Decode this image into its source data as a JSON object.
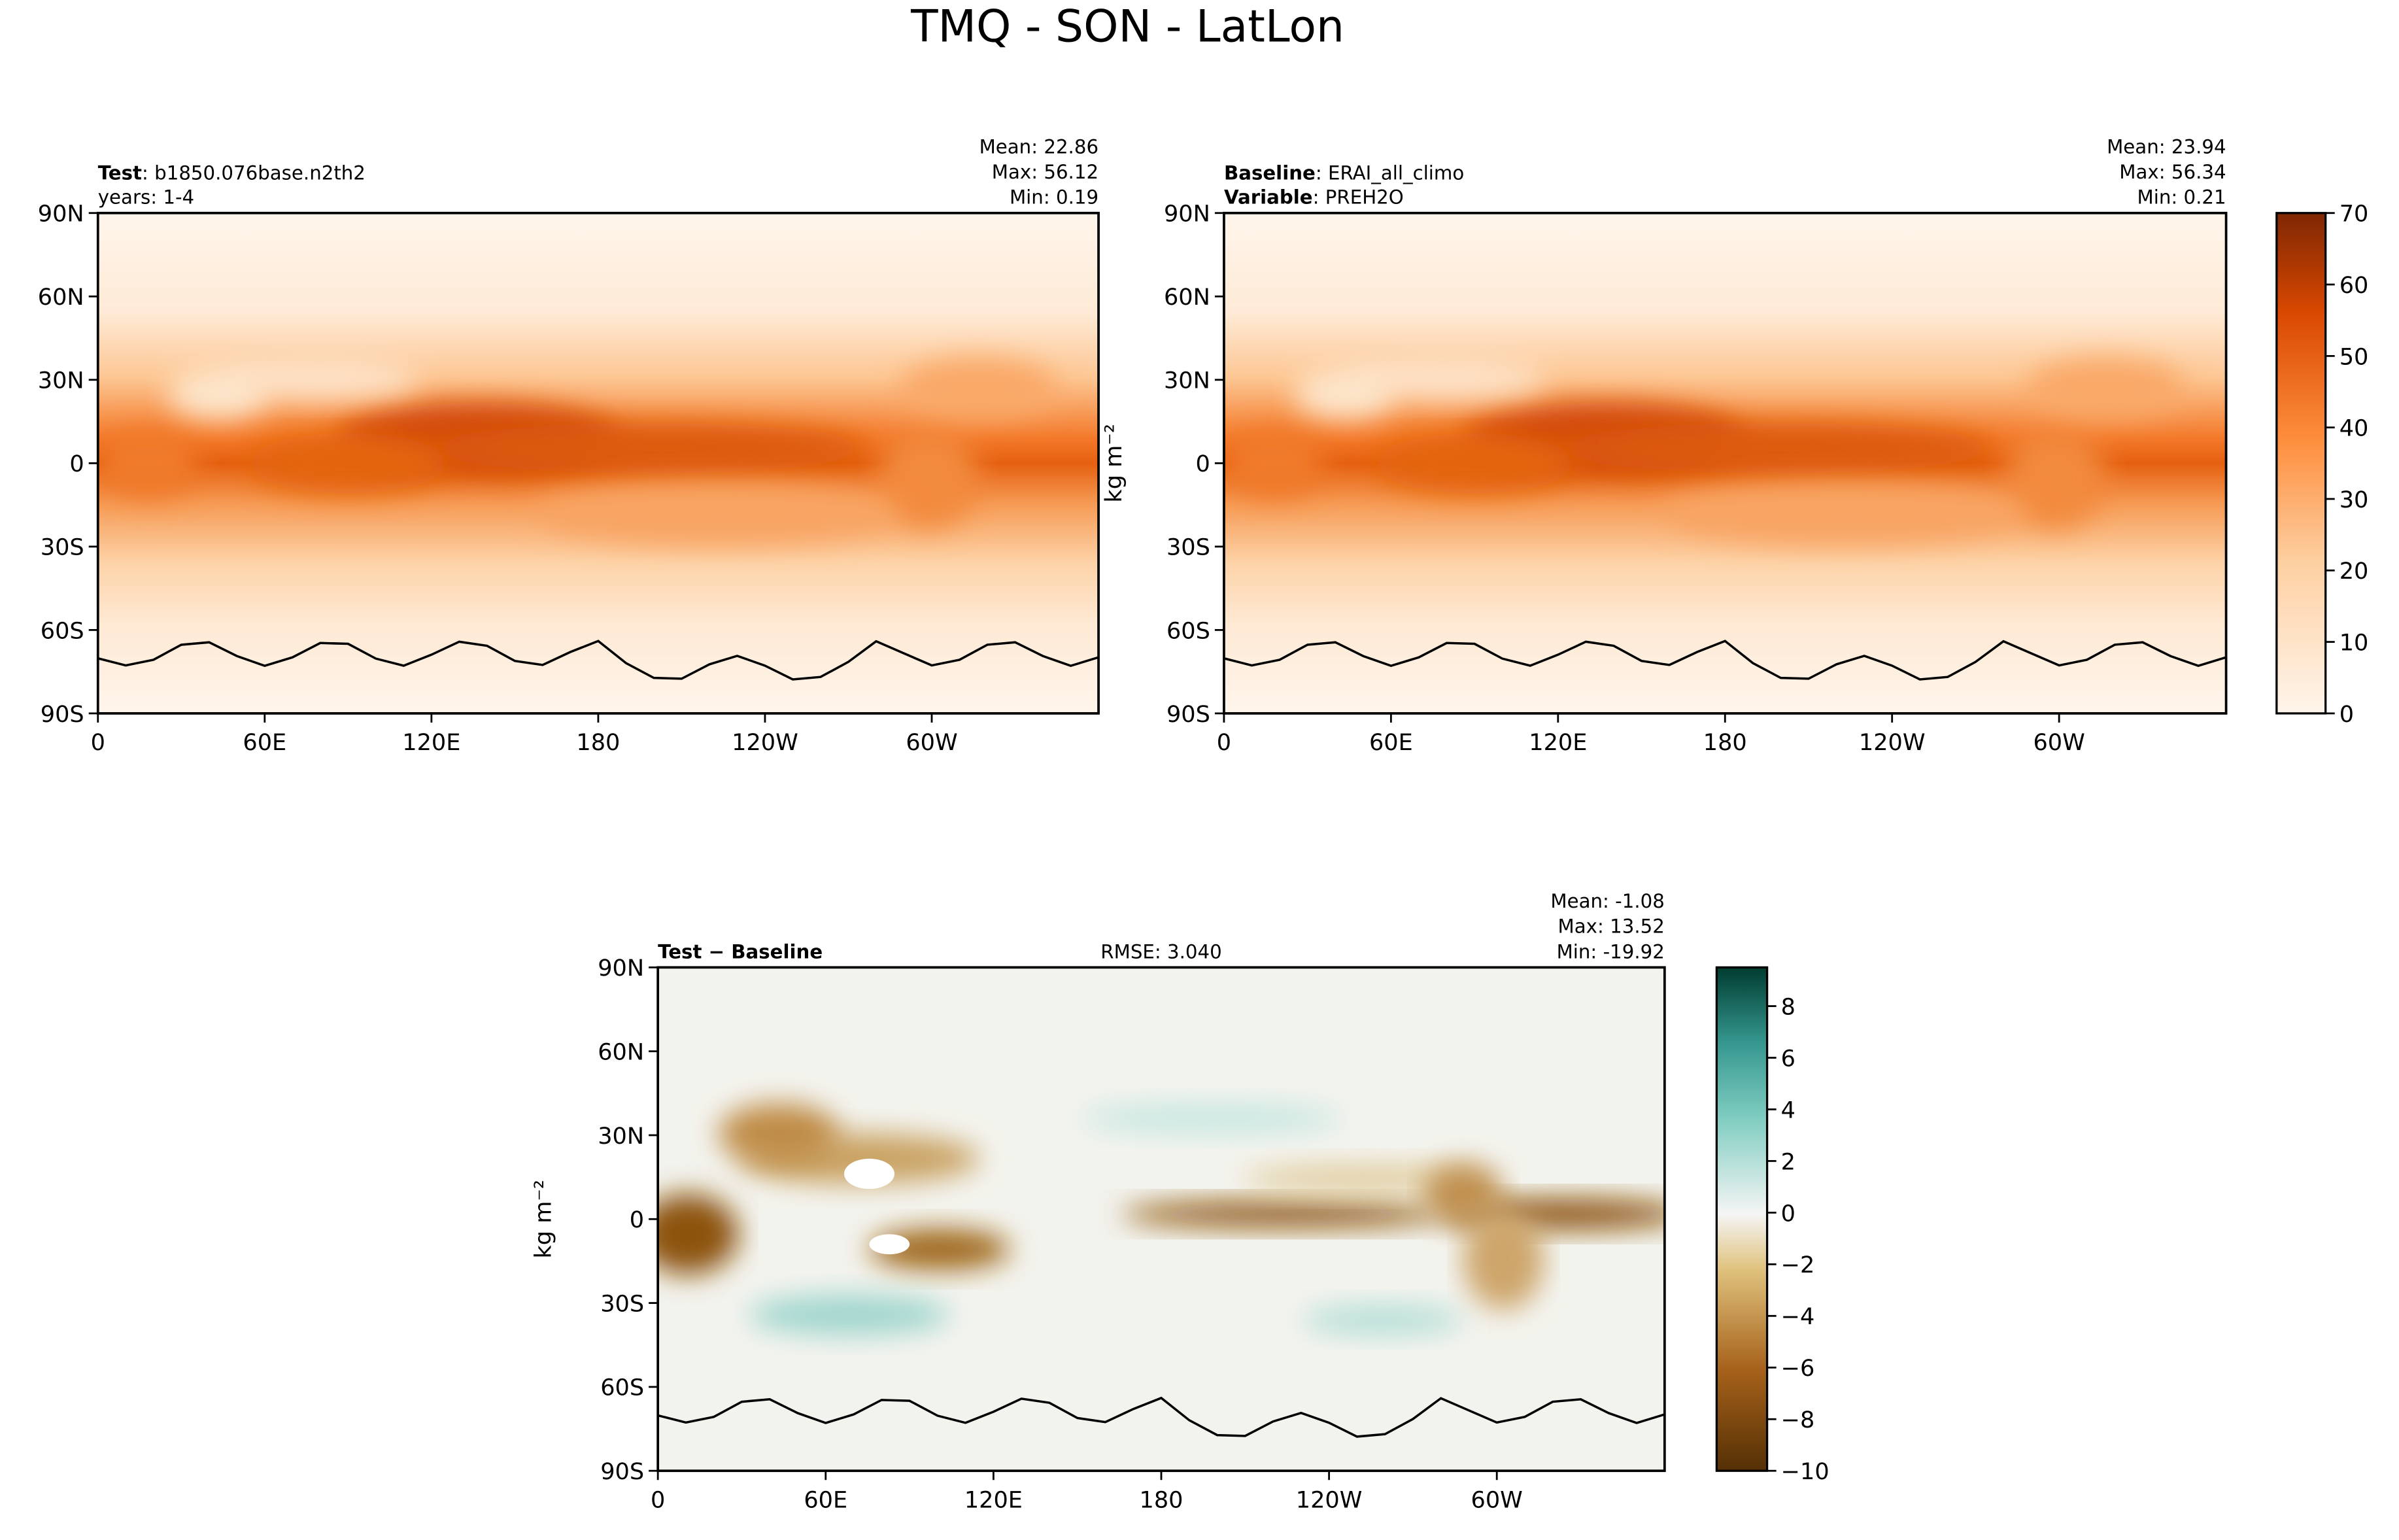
{
  "title": "TMQ - SON - LatLon",
  "panels": [
    {
      "header": [
        {
          "bold": "Test",
          "text": ": b1850.076base.n2th2"
        },
        {
          "text": "years: 1-4"
        }
      ],
      "stats": [
        "Mean: 22.86",
        "Max: 56.12",
        "Min:  0.19"
      ],
      "lat_ticks": [
        "90N",
        "60N",
        "30N",
        "0",
        "30S",
        "60S",
        "90S"
      ],
      "lon_ticks": [
        "0",
        "60E",
        "120E",
        "180",
        "120W",
        "60W"
      ]
    },
    {
      "header": [
        {
          "bold": "Baseline",
          "text": ": ERAI_all_climo"
        },
        {
          "bold": "Variable",
          "text": ": PREH2O"
        }
      ],
      "stats": [
        "Mean: 23.94",
        "Max: 56.34",
        "Min:  0.21"
      ],
      "ylabel": "kg m⁻²",
      "lat_ticks": [
        "90N",
        "60N",
        "30N",
        "0",
        "30S",
        "60S",
        "90S"
      ],
      "lon_ticks": [
        "0",
        "60E",
        "120E",
        "180",
        "120W",
        "60W"
      ]
    },
    {
      "header": [
        {
          "bold": "Test − Baseline"
        }
      ],
      "center": "RMSE: 3.040",
      "stats": [
        "Mean: -1.08",
        "Max: 13.52",
        "Min: -19.92"
      ],
      "ylabel": "kg m⁻²",
      "lat_ticks": [
        "90N",
        "60N",
        "30N",
        "0",
        "30S",
        "60S",
        "90S"
      ],
      "lon_ticks": [
        "0",
        "60E",
        "120E",
        "180",
        "120W",
        "60W"
      ]
    }
  ],
  "colorbars": [
    {
      "lim": [
        0,
        70
      ],
      "ticks": [
        0,
        10,
        20,
        30,
        40,
        50,
        60,
        70
      ]
    },
    {
      "lim": [
        -10,
        9.5
      ],
      "ticks": [
        {
          "value": -10,
          "label": "−10"
        },
        {
          "value": -8,
          "label": "−8"
        },
        {
          "value": -6,
          "label": "−6"
        },
        {
          "value": -4,
          "label": "−4"
        },
        {
          "value": -2,
          "label": "−2"
        },
        0,
        2,
        4,
        6,
        8
      ]
    }
  ]
}
